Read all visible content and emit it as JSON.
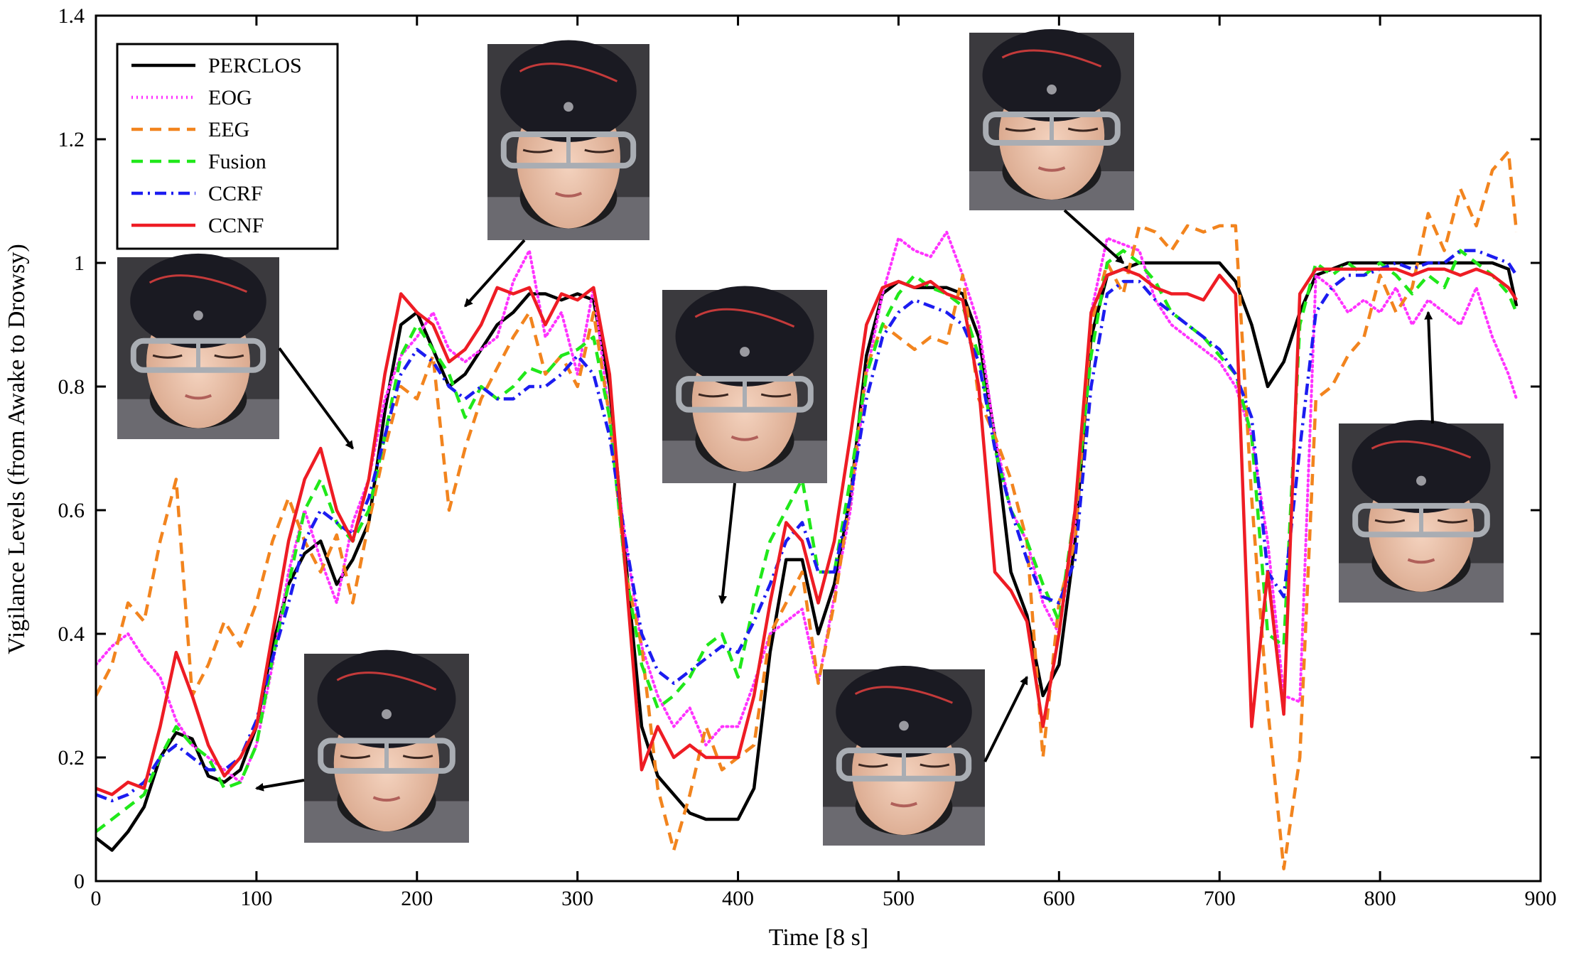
{
  "chart_data": {
    "type": "line",
    "xlabel": "Time [8 s]",
    "ylabel": "Vigilance Levels (from Awake to Drowsy)",
    "xlim": [
      0,
      900
    ],
    "ylim": [
      0,
      1.4
    ],
    "xticks": [
      0,
      100,
      200,
      300,
      400,
      500,
      600,
      700,
      800,
      900
    ],
    "yticks": [
      0,
      0.2,
      0.4,
      0.6,
      0.8,
      1,
      1.2,
      1.4
    ],
    "xtick_labels": [
      "0",
      "100",
      "200",
      "300",
      "400",
      "500",
      "600",
      "700",
      "800",
      "900"
    ],
    "ytick_labels": [
      "0",
      "0.2",
      "0.4",
      "0.6",
      "0.8",
      "1",
      "1.2",
      "1.4"
    ],
    "legend_position": "top-left",
    "series": [
      {
        "name": "PERCLOS",
        "color": "#000000",
        "style": "solid",
        "x": [
          0,
          10,
          20,
          30,
          40,
          50,
          60,
          70,
          80,
          90,
          100,
          110,
          120,
          130,
          140,
          150,
          160,
          170,
          180,
          190,
          200,
          210,
          220,
          230,
          240,
          250,
          260,
          270,
          280,
          290,
          300,
          310,
          320,
          330,
          340,
          350,
          360,
          370,
          380,
          390,
          400,
          410,
          420,
          430,
          440,
          450,
          460,
          470,
          480,
          490,
          500,
          510,
          520,
          530,
          540,
          550,
          560,
          570,
          580,
          590,
          600,
          610,
          620,
          630,
          640,
          650,
          660,
          670,
          680,
          690,
          700,
          710,
          720,
          730,
          740,
          750,
          760,
          770,
          780,
          790,
          800,
          810,
          820,
          830,
          840,
          850,
          860,
          870,
          880,
          885
        ],
        "y": [
          0.07,
          0.05,
          0.08,
          0.12,
          0.2,
          0.24,
          0.23,
          0.17,
          0.16,
          0.18,
          0.25,
          0.38,
          0.48,
          0.53,
          0.55,
          0.48,
          0.52,
          0.58,
          0.76,
          0.9,
          0.92,
          0.86,
          0.8,
          0.82,
          0.86,
          0.9,
          0.92,
          0.95,
          0.95,
          0.94,
          0.95,
          0.94,
          0.8,
          0.52,
          0.25,
          0.17,
          0.14,
          0.11,
          0.1,
          0.1,
          0.1,
          0.15,
          0.37,
          0.52,
          0.52,
          0.4,
          0.48,
          0.62,
          0.85,
          0.95,
          0.97,
          0.96,
          0.96,
          0.96,
          0.95,
          0.88,
          0.72,
          0.5,
          0.43,
          0.3,
          0.35,
          0.55,
          0.88,
          0.98,
          0.99,
          1.0,
          1.0,
          1.0,
          1.0,
          1.0,
          1.0,
          0.97,
          0.9,
          0.8,
          0.84,
          0.92,
          0.98,
          0.99,
          1.0,
          1.0,
          1.0,
          1.0,
          1.0,
          1.0,
          1.0,
          1.0,
          1.0,
          1.0,
          0.99,
          0.93
        ]
      },
      {
        "name": "EOG",
        "color": "#ff33ff",
        "style": "dotted",
        "x": [
          0,
          10,
          20,
          30,
          40,
          50,
          60,
          70,
          80,
          90,
          100,
          110,
          120,
          130,
          140,
          150,
          160,
          170,
          180,
          190,
          200,
          210,
          220,
          230,
          240,
          250,
          260,
          270,
          280,
          290,
          300,
          310,
          320,
          330,
          340,
          350,
          360,
          370,
          380,
          390,
          400,
          410,
          420,
          430,
          440,
          450,
          460,
          470,
          480,
          490,
          500,
          510,
          520,
          530,
          540,
          550,
          560,
          570,
          580,
          590,
          600,
          610,
          620,
          630,
          640,
          650,
          660,
          670,
          680,
          690,
          700,
          710,
          720,
          730,
          740,
          750,
          760,
          770,
          780,
          790,
          800,
          810,
          820,
          830,
          840,
          850,
          860,
          870,
          880,
          885
        ],
        "y": [
          0.35,
          0.38,
          0.4,
          0.36,
          0.33,
          0.26,
          0.22,
          0.2,
          0.18,
          0.16,
          0.22,
          0.35,
          0.5,
          0.6,
          0.52,
          0.45,
          0.58,
          0.65,
          0.78,
          0.85,
          0.88,
          0.92,
          0.86,
          0.84,
          0.86,
          0.88,
          0.97,
          1.02,
          0.88,
          0.92,
          0.82,
          0.96,
          0.75,
          0.55,
          0.38,
          0.3,
          0.25,
          0.28,
          0.22,
          0.25,
          0.25,
          0.32,
          0.4,
          0.42,
          0.44,
          0.32,
          0.46,
          0.6,
          0.82,
          0.95,
          1.04,
          1.02,
          1.01,
          1.05,
          0.98,
          0.9,
          0.72,
          0.6,
          0.55,
          0.45,
          0.4,
          0.58,
          0.92,
          1.04,
          1.03,
          1.02,
          0.94,
          0.9,
          0.88,
          0.86,
          0.84,
          0.8,
          0.72,
          0.55,
          0.3,
          0.29,
          0.98,
          0.96,
          0.92,
          0.94,
          0.92,
          0.96,
          0.9,
          0.94,
          0.92,
          0.9,
          0.96,
          0.88,
          0.82,
          0.78
        ]
      },
      {
        "name": "EEG",
        "color": "#f2841e",
        "style": "dashed",
        "x": [
          0,
          10,
          20,
          30,
          40,
          50,
          60,
          70,
          80,
          90,
          100,
          110,
          120,
          130,
          140,
          150,
          160,
          170,
          180,
          190,
          200,
          210,
          220,
          230,
          240,
          250,
          260,
          270,
          280,
          290,
          300,
          310,
          320,
          330,
          340,
          350,
          360,
          370,
          380,
          390,
          400,
          410,
          420,
          430,
          440,
          450,
          460,
          470,
          480,
          490,
          500,
          510,
          520,
          530,
          540,
          550,
          560,
          570,
          580,
          590,
          600,
          610,
          620,
          630,
          640,
          650,
          660,
          670,
          680,
          690,
          700,
          710,
          720,
          730,
          740,
          750,
          760,
          770,
          780,
          790,
          800,
          810,
          820,
          830,
          840,
          850,
          860,
          870,
          880,
          885
        ],
        "y": [
          0.3,
          0.35,
          0.45,
          0.42,
          0.55,
          0.65,
          0.3,
          0.35,
          0.42,
          0.38,
          0.45,
          0.55,
          0.62,
          0.55,
          0.5,
          0.56,
          0.45,
          0.58,
          0.7,
          0.8,
          0.78,
          0.85,
          0.6,
          0.7,
          0.78,
          0.83,
          0.88,
          0.92,
          0.82,
          0.85,
          0.8,
          0.92,
          0.75,
          0.5,
          0.38,
          0.15,
          0.05,
          0.14,
          0.25,
          0.18,
          0.2,
          0.22,
          0.4,
          0.45,
          0.5,
          0.32,
          0.45,
          0.62,
          0.83,
          0.9,
          0.88,
          0.86,
          0.88,
          0.87,
          0.98,
          0.78,
          0.72,
          0.65,
          0.55,
          0.2,
          0.45,
          0.55,
          0.9,
          1.0,
          0.95,
          1.06,
          1.05,
          1.02,
          1.06,
          1.05,
          1.06,
          1.06,
          0.62,
          0.28,
          0.02,
          0.2,
          0.78,
          0.8,
          0.85,
          0.88,
          0.98,
          0.92,
          0.96,
          1.08,
          1.02,
          1.12,
          1.06,
          1.15,
          1.18,
          1.05
        ]
      },
      {
        "name": "Fusion",
        "color": "#20e81a",
        "style": "dashed",
        "x": [
          0,
          10,
          20,
          30,
          40,
          50,
          60,
          70,
          80,
          90,
          100,
          110,
          120,
          130,
          140,
          150,
          160,
          170,
          180,
          190,
          200,
          210,
          220,
          230,
          240,
          250,
          260,
          270,
          280,
          290,
          300,
          310,
          320,
          330,
          340,
          350,
          360,
          370,
          380,
          390,
          400,
          410,
          420,
          430,
          440,
          450,
          460,
          470,
          480,
          490,
          500,
          510,
          520,
          530,
          540,
          550,
          560,
          570,
          580,
          590,
          600,
          610,
          620,
          630,
          640,
          650,
          660,
          670,
          680,
          690,
          700,
          710,
          720,
          730,
          740,
          750,
          760,
          770,
          780,
          790,
          800,
          810,
          820,
          830,
          840,
          850,
          860,
          870,
          880,
          885
        ],
        "y": [
          0.08,
          0.1,
          0.12,
          0.14,
          0.2,
          0.25,
          0.22,
          0.2,
          0.15,
          0.16,
          0.22,
          0.36,
          0.48,
          0.6,
          0.65,
          0.58,
          0.55,
          0.6,
          0.72,
          0.85,
          0.9,
          0.86,
          0.82,
          0.75,
          0.8,
          0.78,
          0.8,
          0.83,
          0.82,
          0.85,
          0.86,
          0.88,
          0.75,
          0.5,
          0.35,
          0.28,
          0.3,
          0.33,
          0.38,
          0.4,
          0.33,
          0.45,
          0.55,
          0.6,
          0.65,
          0.5,
          0.5,
          0.65,
          0.82,
          0.9,
          0.95,
          0.98,
          0.96,
          0.95,
          0.93,
          0.85,
          0.7,
          0.6,
          0.55,
          0.48,
          0.42,
          0.6,
          0.85,
          1.0,
          1.02,
          1.0,
          0.97,
          0.92,
          0.9,
          0.88,
          0.85,
          0.82,
          0.72,
          0.4,
          0.38,
          0.9,
          1.0,
          0.98,
          1.0,
          0.98,
          1.0,
          0.98,
          0.95,
          0.98,
          0.96,
          1.02,
          1.0,
          0.98,
          0.95,
          0.92
        ]
      },
      {
        "name": "CCRF",
        "color": "#1c1cf0",
        "style": "dashdot",
        "x": [
          0,
          10,
          20,
          30,
          40,
          50,
          60,
          70,
          80,
          90,
          100,
          110,
          120,
          130,
          140,
          150,
          160,
          170,
          180,
          190,
          200,
          210,
          220,
          230,
          240,
          250,
          260,
          270,
          280,
          290,
          300,
          310,
          320,
          330,
          340,
          350,
          360,
          370,
          380,
          390,
          400,
          410,
          420,
          430,
          440,
          450,
          460,
          470,
          480,
          490,
          500,
          510,
          520,
          530,
          540,
          550,
          560,
          570,
          580,
          590,
          600,
          610,
          620,
          630,
          640,
          650,
          660,
          670,
          680,
          690,
          700,
          710,
          720,
          730,
          740,
          750,
          760,
          770,
          780,
          790,
          800,
          810,
          820,
          830,
          840,
          850,
          860,
          870,
          880,
          885
        ],
        "y": [
          0.14,
          0.13,
          0.14,
          0.16,
          0.2,
          0.22,
          0.2,
          0.18,
          0.18,
          0.2,
          0.26,
          0.36,
          0.45,
          0.55,
          0.6,
          0.58,
          0.56,
          0.62,
          0.72,
          0.82,
          0.86,
          0.84,
          0.8,
          0.78,
          0.8,
          0.78,
          0.78,
          0.8,
          0.8,
          0.82,
          0.85,
          0.82,
          0.72,
          0.55,
          0.4,
          0.34,
          0.32,
          0.34,
          0.36,
          0.38,
          0.37,
          0.42,
          0.48,
          0.55,
          0.58,
          0.5,
          0.5,
          0.62,
          0.78,
          0.88,
          0.92,
          0.94,
          0.93,
          0.92,
          0.9,
          0.84,
          0.7,
          0.6,
          0.52,
          0.46,
          0.45,
          0.52,
          0.8,
          0.95,
          0.97,
          0.97,
          0.94,
          0.92,
          0.9,
          0.88,
          0.86,
          0.82,
          0.75,
          0.5,
          0.46,
          0.7,
          0.92,
          0.96,
          0.98,
          0.98,
          0.99,
          1.0,
          0.99,
          1.0,
          1.0,
          1.02,
          1.02,
          1.01,
          1.0,
          0.98
        ]
      },
      {
        "name": "CCNF",
        "color": "#ee1c24",
        "style": "solid",
        "x": [
          0,
          10,
          20,
          30,
          40,
          50,
          60,
          70,
          80,
          90,
          100,
          110,
          120,
          130,
          140,
          150,
          160,
          170,
          180,
          190,
          200,
          210,
          220,
          230,
          240,
          250,
          260,
          270,
          280,
          290,
          300,
          310,
          320,
          330,
          340,
          350,
          360,
          370,
          380,
          390,
          400,
          410,
          420,
          430,
          440,
          450,
          460,
          470,
          480,
          490,
          500,
          510,
          520,
          530,
          540,
          550,
          560,
          570,
          580,
          590,
          600,
          610,
          620,
          630,
          640,
          650,
          660,
          670,
          680,
          690,
          700,
          710,
          720,
          730,
          740,
          750,
          760,
          770,
          780,
          790,
          800,
          810,
          820,
          830,
          840,
          850,
          860,
          870,
          880,
          885
        ],
        "y": [
          0.15,
          0.14,
          0.16,
          0.15,
          0.25,
          0.37,
          0.3,
          0.22,
          0.17,
          0.2,
          0.25,
          0.4,
          0.55,
          0.65,
          0.7,
          0.6,
          0.55,
          0.65,
          0.82,
          0.95,
          0.92,
          0.9,
          0.84,
          0.86,
          0.9,
          0.96,
          0.95,
          0.96,
          0.9,
          0.95,
          0.94,
          0.96,
          0.82,
          0.5,
          0.18,
          0.25,
          0.2,
          0.22,
          0.2,
          0.2,
          0.2,
          0.3,
          0.45,
          0.58,
          0.55,
          0.45,
          0.55,
          0.72,
          0.9,
          0.96,
          0.97,
          0.96,
          0.97,
          0.95,
          0.94,
          0.8,
          0.5,
          0.47,
          0.42,
          0.25,
          0.4,
          0.6,
          0.92,
          0.98,
          0.99,
          0.98,
          0.96,
          0.95,
          0.95,
          0.94,
          0.98,
          0.95,
          0.25,
          0.5,
          0.27,
          0.95,
          0.99,
          0.99,
          0.99,
          0.99,
          0.99,
          0.99,
          0.98,
          0.99,
          0.99,
          0.98,
          0.99,
          0.98,
          0.96,
          0.94
        ]
      }
    ],
    "annotations": [
      {
        "label": "face-photo",
        "x": 160,
        "y": 0.7
      },
      {
        "label": "face-photo",
        "x": 100,
        "y": 0.15
      },
      {
        "label": "face-photo",
        "x": 230,
        "y": 0.93
      },
      {
        "label": "face-photo",
        "x": 390,
        "y": 0.45
      },
      {
        "label": "face-photo",
        "x": 580,
        "y": 0.33
      },
      {
        "label": "face-photo",
        "x": 640,
        "y": 1.0
      },
      {
        "label": "face-photo",
        "x": 830,
        "y": 0.92
      }
    ]
  }
}
